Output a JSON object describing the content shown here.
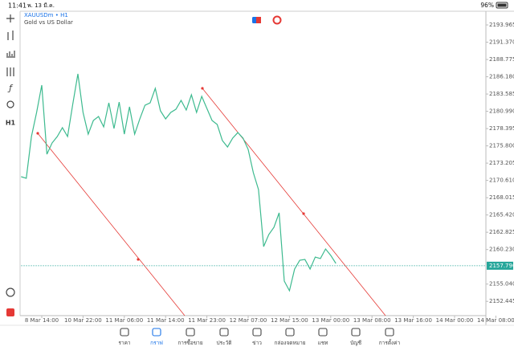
{
  "status_bar": {
    "time": "11:41",
    "date": "พ. 13 มี.ค.",
    "battery": "96%"
  },
  "symbol": "XAUUSDm • H1",
  "description": "Gold vs US Dollar",
  "timeframe": "H1",
  "chart_data": {
    "type": "line",
    "color": "#3dba8f",
    "values": [
      2171.17,
      2170.93,
      2177.2,
      2180.82,
      2184.92,
      2174.54,
      2176.23,
      2177.2,
      2178.53,
      2177.2,
      2182.02,
      2186.61,
      2180.82,
      2177.56,
      2179.61,
      2180.21,
      2178.65,
      2182.26,
      2178.4,
      2182.38,
      2177.56,
      2181.66,
      2177.56,
      2179.85,
      2181.9,
      2182.26,
      2184.44,
      2181.06,
      2179.85,
      2180.82,
      2181.3,
      2182.63,
      2181.18,
      2183.47,
      2180.82,
      2183.23,
      2181.42,
      2179.61,
      2179.01,
      2176.6,
      2175.63,
      2176.96,
      2177.8,
      2176.96,
      2175.27,
      2171.77,
      2169.24,
      2160.67,
      2162.48,
      2163.57,
      2165.74,
      2155.49,
      2154.04,
      2157.3,
      2158.62,
      2158.74,
      2157.3,
      2159.1,
      2158.87,
      2160.31,
      2159.35,
      2158.14
    ],
    "xlim": [
      0,
      90.07
    ],
    "xticks": [
      {
        "value": 4,
        "label": "8 Mar 14:00"
      },
      {
        "value": 12,
        "label": "10 Mar 22:00"
      },
      {
        "value": 20,
        "label": "11 Mar 06:00"
      },
      {
        "value": 28,
        "label": "11 Mar 14:00"
      },
      {
        "value": 36,
        "label": "11 Mar 23:00"
      },
      {
        "value": 44,
        "label": "12 Mar 07:00"
      },
      {
        "value": 52,
        "label": "12 Mar 15:00"
      },
      {
        "value": 60,
        "label": "13 Mar 00:00"
      },
      {
        "value": 68,
        "label": "13 Mar 08:00"
      },
      {
        "value": 76,
        "label": "13 Mar 16:00"
      },
      {
        "value": 84,
        "label": "14 Mar 00:00"
      },
      {
        "value": 92,
        "label": "14 Mar 08:00"
      }
    ],
    "ylim": [
      2150.3,
      2196.02
    ],
    "yticks": [
      2193.965,
      {
        "value": 2191.37,
        "label": "2191.370"
      },
      2188.775,
      {
        "value": 2186.18,
        "label": "2186.180"
      },
      2183.585,
      {
        "value": 2180.99,
        "label": "2180.990"
      },
      2178.395,
      {
        "value": 2175.8,
        "label": "2175.800"
      },
      2173.205,
      {
        "value": 2170.61,
        "label": "2170.610"
      },
      2168.015,
      {
        "value": 2165.42,
        "label": "2165.420"
      },
      2162.825,
      {
        "value": 2160.23,
        "label": "2160.230"
      },
      {
        "value": 2155.04,
        "label": "2155.040"
      },
      2152.445
    ],
    "current_price": 2157.796,
    "current_price_color": "#26a69a",
    "grid": false
  },
  "bottom_nav": {
    "active": 1,
    "items": [
      "ราคา",
      "กราฟ",
      "การซื้อขาย",
      "ประวัติ",
      "ข่าว",
      "กล่องจดหมาย",
      "แชท",
      "บัญชี",
      "การตั้งค่า"
    ]
  }
}
